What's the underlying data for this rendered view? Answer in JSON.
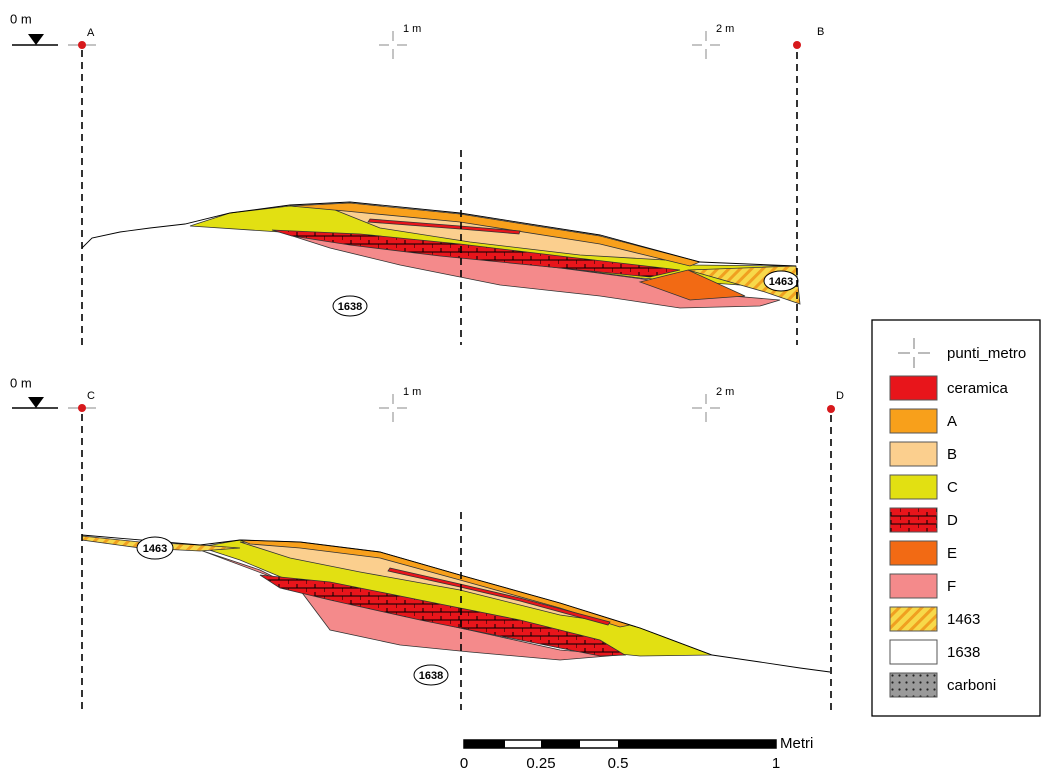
{
  "sections": [
    {
      "datum_label": "0 m",
      "left_point": "A",
      "right_point": "B",
      "meter_labels": [
        "1 m",
        "2 m"
      ],
      "unit_labels": [
        "1638",
        "1463"
      ]
    },
    {
      "datum_label": "0 m",
      "left_point": "C",
      "right_point": "D",
      "meter_labels": [
        "1 m",
        "2 m"
      ],
      "unit_labels": [
        "1463",
        "1638"
      ]
    }
  ],
  "legend": {
    "items": [
      "punti_metro",
      "ceramica",
      "A",
      "B",
      "C",
      "D",
      "E",
      "F",
      "1463",
      "1638",
      "carboni"
    ]
  },
  "scale_bar": {
    "unit": "Metri",
    "ticks": [
      "0",
      "0.25",
      "0.5",
      "1"
    ]
  }
}
